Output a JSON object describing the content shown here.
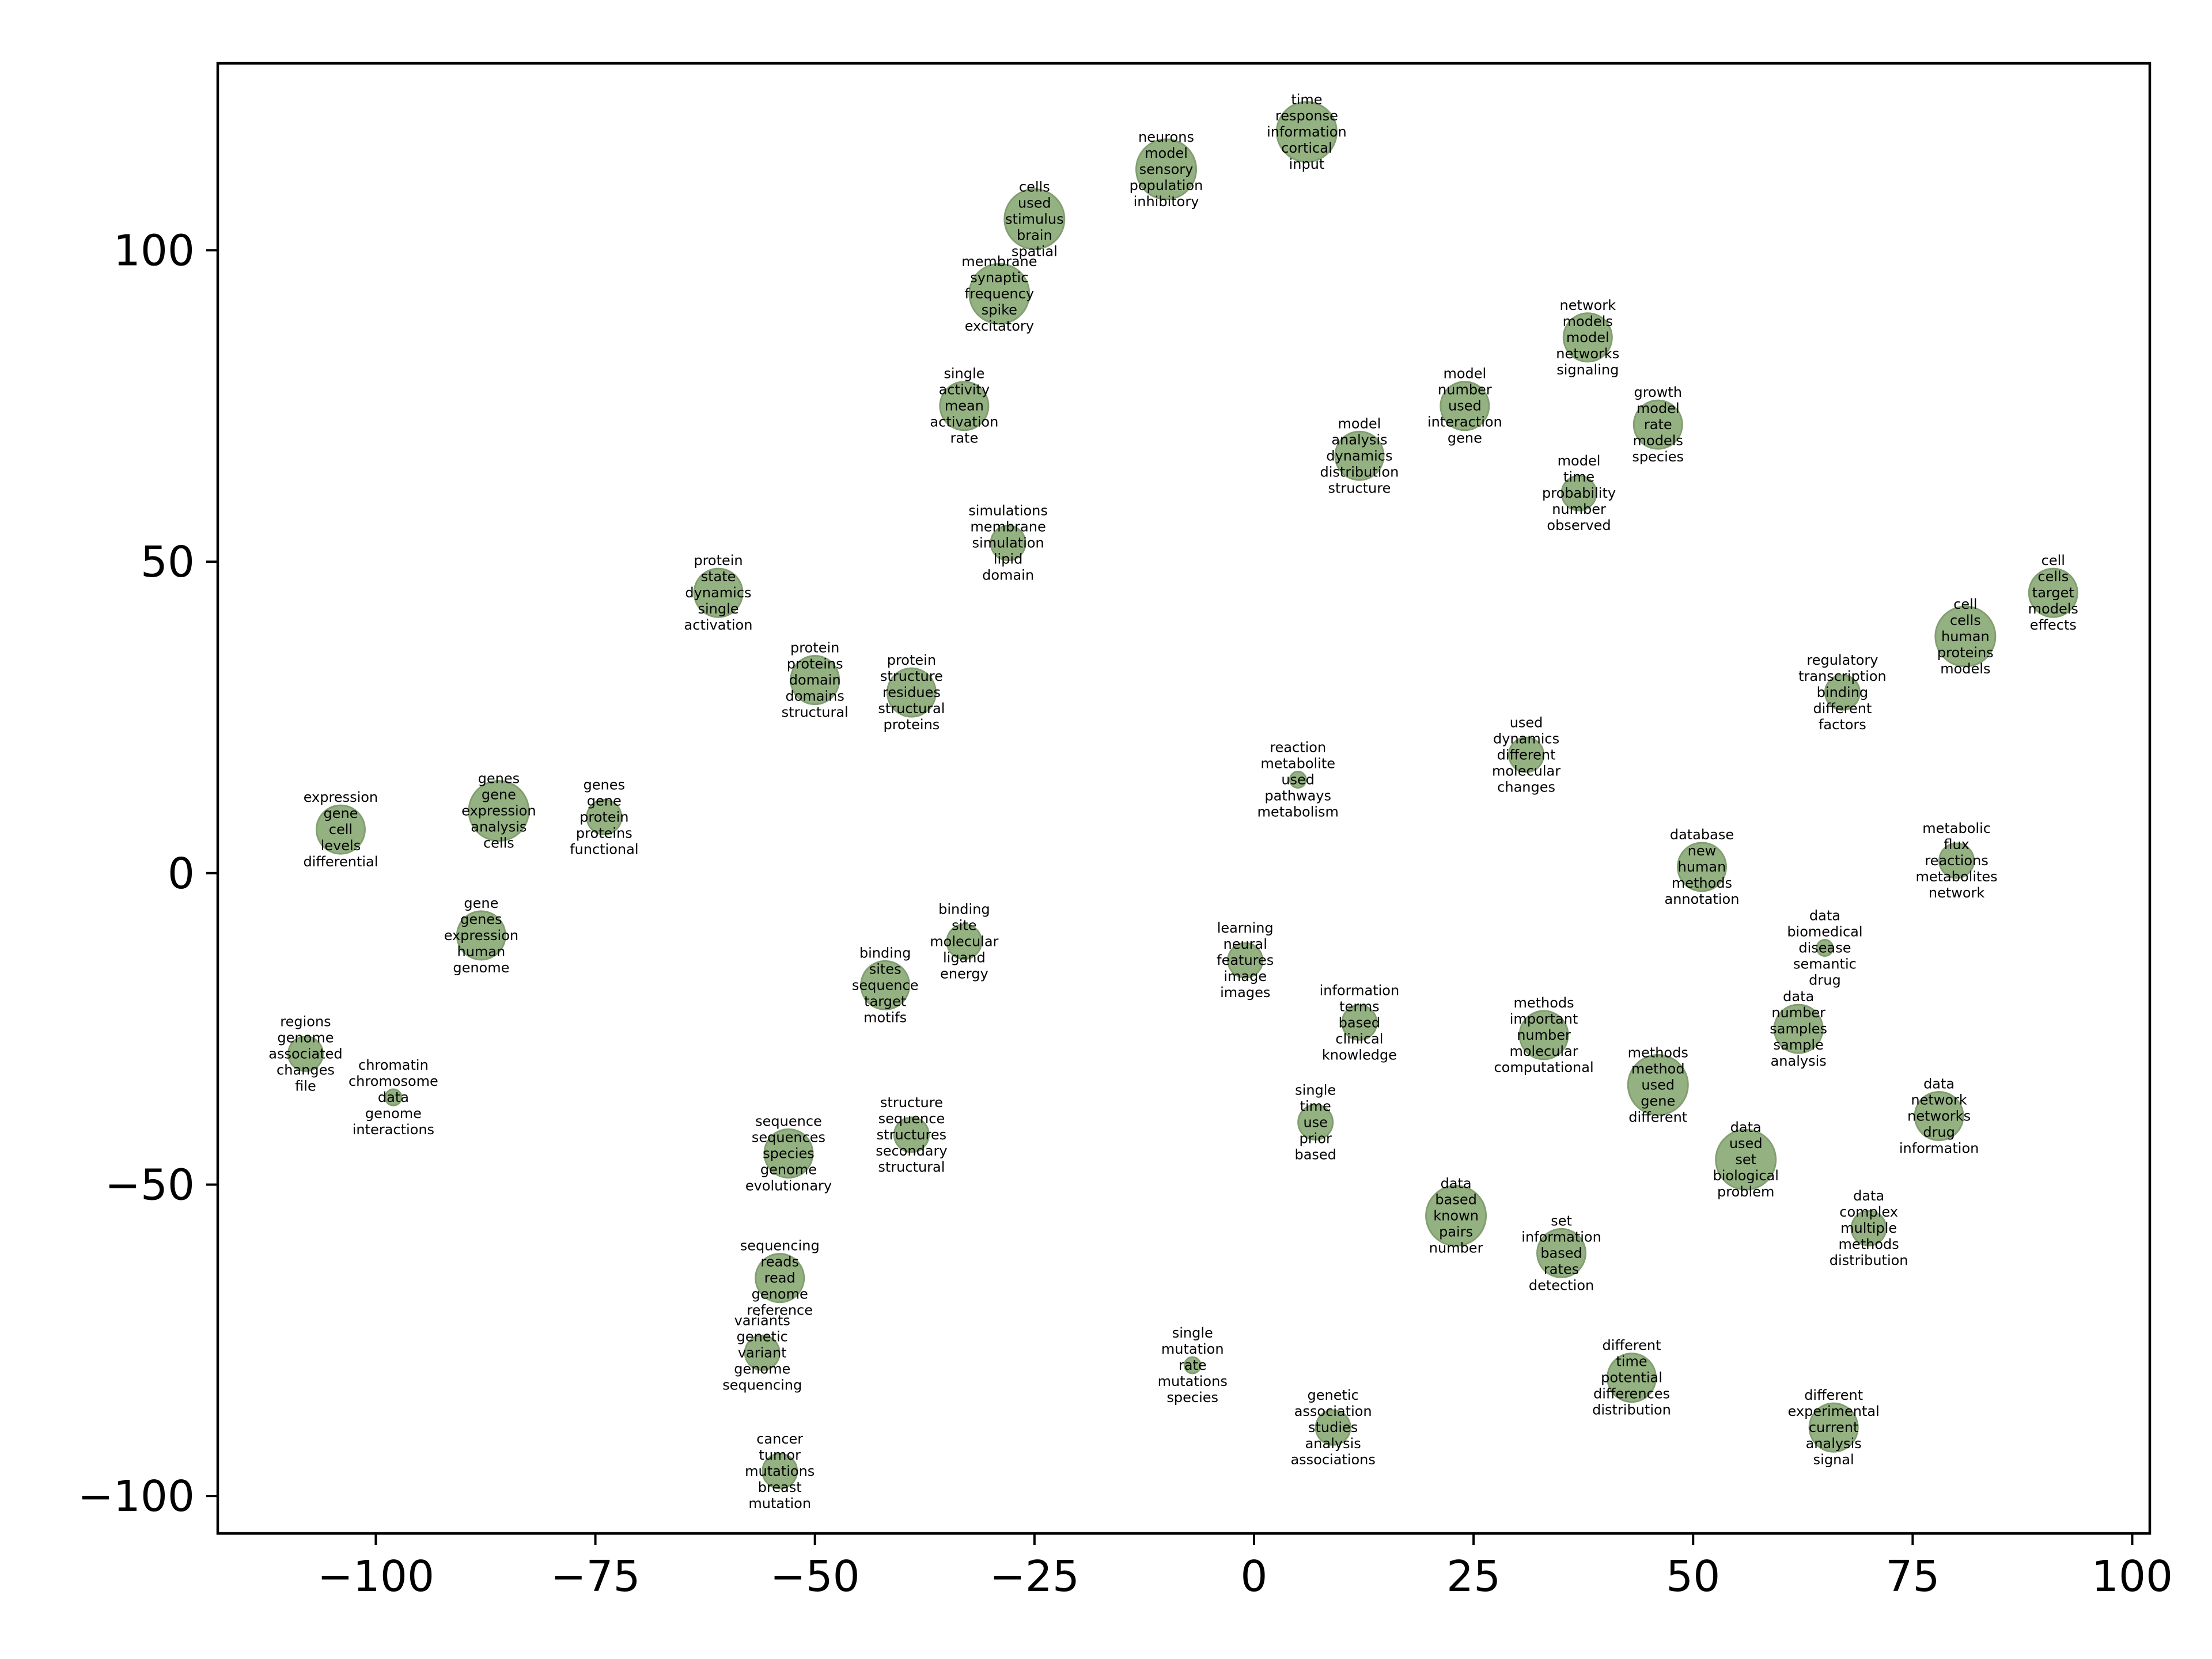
{
  "chart_data": {
    "type": "scatter",
    "title": "",
    "xlabel": "",
    "ylabel": "",
    "xlim": [
      -118,
      102
    ],
    "ylim": [
      -106,
      130
    ],
    "xticks": [
      -100,
      -75,
      -50,
      -25,
      0,
      25,
      50,
      75,
      100
    ],
    "yticks": [
      -100,
      -50,
      0,
      50,
      100
    ],
    "xtick_labels": [
      "−100",
      "−75",
      "−50",
      "−25",
      "0",
      "25",
      "50",
      "75",
      "100"
    ],
    "ytick_labels": [
      "−100",
      "−50",
      "0",
      "50",
      "100"
    ],
    "grid": false,
    "marker_color": "#8fad7c",
    "marker_edge": "#7c9a6a",
    "points": [
      {
        "x": 6,
        "y": 119,
        "size": 3,
        "words": [
          "time",
          "response",
          "information",
          "cortical",
          "input"
        ]
      },
      {
        "x": -10,
        "y": 113,
        "size": 3,
        "words": [
          "neurons",
          "model",
          "sensory",
          "population",
          "inhibitory"
        ]
      },
      {
        "x": -25,
        "y": 105,
        "size": 3,
        "words": [
          "cells",
          "used",
          "stimulus",
          "brain",
          "spatial"
        ]
      },
      {
        "x": -29,
        "y": 93,
        "size": 3,
        "words": [
          "membrane",
          "synaptic",
          "frequency",
          "spike",
          "excitatory"
        ]
      },
      {
        "x": 38,
        "y": 86,
        "size": 2,
        "words": [
          "network",
          "models",
          "model",
          "networks",
          "signaling"
        ]
      },
      {
        "x": -33,
        "y": 75,
        "size": 2,
        "words": [
          "single",
          "activity",
          "mean",
          "activation",
          "rate"
        ]
      },
      {
        "x": 24,
        "y": 75,
        "size": 2,
        "words": [
          "model",
          "number",
          "used",
          "interaction",
          "gene"
        ]
      },
      {
        "x": 46,
        "y": 72,
        "size": 2,
        "words": [
          "growth",
          "model",
          "rate",
          "models",
          "species"
        ]
      },
      {
        "x": 12,
        "y": 67,
        "size": 2,
        "words": [
          "model",
          "analysis",
          "dynamics",
          "distribution",
          "structure"
        ]
      },
      {
        "x": 37,
        "y": 61,
        "size": 1,
        "words": [
          "model",
          "time",
          "probability",
          "number",
          "observed"
        ]
      },
      {
        "x": -28,
        "y": 53,
        "size": 1,
        "words": [
          "simulations",
          "membrane",
          "simulation",
          "lipid",
          "domain"
        ]
      },
      {
        "x": -61,
        "y": 45,
        "size": 2,
        "words": [
          "protein",
          "state",
          "dynamics",
          "single",
          "activation"
        ]
      },
      {
        "x": 91,
        "y": 45,
        "size": 2,
        "words": [
          "cell",
          "cells",
          "target",
          "models",
          "effects"
        ]
      },
      {
        "x": 81,
        "y": 38,
        "size": 3,
        "words": [
          "cell",
          "cells",
          "human",
          "proteins",
          "models"
        ]
      },
      {
        "x": -50,
        "y": 31,
        "size": 2,
        "words": [
          "protein",
          "proteins",
          "domain",
          "domains",
          "structural"
        ]
      },
      {
        "x": -39,
        "y": 29,
        "size": 2,
        "words": [
          "protein",
          "structure",
          "residues",
          "structural",
          "proteins"
        ]
      },
      {
        "x": 67,
        "y": 29,
        "size": 1,
        "words": [
          "regulatory",
          "transcription",
          "binding",
          "different",
          "factors"
        ]
      },
      {
        "x": 31,
        "y": 19,
        "size": 1,
        "words": [
          "used",
          "dynamics",
          "different",
          "molecular",
          "changes"
        ]
      },
      {
        "x": 5,
        "y": 15,
        "size": 0,
        "words": [
          "reaction",
          "metabolite",
          "used",
          "pathways",
          "metabolism"
        ]
      },
      {
        "x": -86,
        "y": 10,
        "size": 3,
        "words": [
          "genes",
          "gene",
          "expression",
          "analysis",
          "cells"
        ]
      },
      {
        "x": -74,
        "y": 9,
        "size": 1,
        "words": [
          "genes",
          "gene",
          "protein",
          "proteins",
          "functional"
        ]
      },
      {
        "x": -104,
        "y": 7,
        "size": 2,
        "words": [
          "expression",
          "gene",
          "cell",
          "levels",
          "differential"
        ]
      },
      {
        "x": 80,
        "y": 2,
        "size": 1,
        "words": [
          "metabolic",
          "flux",
          "reactions",
          "metabolites",
          "network"
        ]
      },
      {
        "x": 51,
        "y": 1,
        "size": 2,
        "words": [
          "database",
          "new",
          "human",
          "methods",
          "annotation"
        ]
      },
      {
        "x": -88,
        "y": -10,
        "size": 2,
        "words": [
          "gene",
          "genes",
          "expression",
          "human",
          "genome"
        ]
      },
      {
        "x": -33,
        "y": -11,
        "size": 1,
        "words": [
          "binding",
          "site",
          "molecular",
          "ligand",
          "energy"
        ]
      },
      {
        "x": 65,
        "y": -12,
        "size": 0,
        "words": [
          "data",
          "biomedical",
          "disease",
          "semantic",
          "drug"
        ]
      },
      {
        "x": -1,
        "y": -14,
        "size": 1,
        "words": [
          "learning",
          "neural",
          "features",
          "image",
          "images"
        ]
      },
      {
        "x": -42,
        "y": -18,
        "size": 2,
        "words": [
          "binding",
          "sites",
          "sequence",
          "target",
          "motifs"
        ]
      },
      {
        "x": 12,
        "y": -24,
        "size": 1,
        "words": [
          "information",
          "terms",
          "based",
          "clinical",
          "knowledge"
        ]
      },
      {
        "x": 62,
        "y": -25,
        "size": 2,
        "words": [
          "data",
          "number",
          "samples",
          "sample",
          "analysis"
        ]
      },
      {
        "x": 33,
        "y": -26,
        "size": 2,
        "words": [
          "methods",
          "important",
          "number",
          "molecular",
          "computational"
        ]
      },
      {
        "x": -108,
        "y": -29,
        "size": 1,
        "words": [
          "regions",
          "genome",
          "associated",
          "changes",
          "file"
        ]
      },
      {
        "x": 46,
        "y": -34,
        "size": 3,
        "words": [
          "methods",
          "method",
          "used",
          "gene",
          "different"
        ]
      },
      {
        "x": -98,
        "y": -36,
        "size": 0,
        "words": [
          "chromatin",
          "chromosome",
          "data",
          "genome",
          "interactions"
        ]
      },
      {
        "x": 78,
        "y": -39,
        "size": 2,
        "words": [
          "data",
          "network",
          "networks",
          "drug",
          "information"
        ]
      },
      {
        "x": 7,
        "y": -40,
        "size": 1,
        "words": [
          "single",
          "time",
          "use",
          "prior",
          "based"
        ]
      },
      {
        "x": -39,
        "y": -42,
        "size": 1,
        "words": [
          "structure",
          "sequence",
          "structures",
          "secondary",
          "structural"
        ]
      },
      {
        "x": -53,
        "y": -45,
        "size": 2,
        "words": [
          "sequence",
          "sequences",
          "species",
          "genome",
          "evolutionary"
        ]
      },
      {
        "x": 56,
        "y": -46,
        "size": 3,
        "words": [
          "data",
          "used",
          "set",
          "biological",
          "problem"
        ]
      },
      {
        "x": 23,
        "y": -55,
        "size": 3,
        "words": [
          "data",
          "based",
          "known",
          "pairs",
          "number"
        ]
      },
      {
        "x": 70,
        "y": -57,
        "size": 1,
        "words": [
          "data",
          "complex",
          "multiple",
          "methods",
          "distribution"
        ]
      },
      {
        "x": 35,
        "y": -61,
        "size": 2,
        "words": [
          "set",
          "information",
          "based",
          "rates",
          "detection"
        ]
      },
      {
        "x": -54,
        "y": -65,
        "size": 2,
        "words": [
          "sequencing",
          "reads",
          "read",
          "genome",
          "reference"
        ]
      },
      {
        "x": -56,
        "y": -77,
        "size": 1,
        "words": [
          "variants",
          "genetic",
          "variant",
          "genome",
          "sequencing"
        ]
      },
      {
        "x": -7,
        "y": -79,
        "size": 0,
        "words": [
          "single",
          "mutation",
          "rate",
          "mutations",
          "species"
        ]
      },
      {
        "x": 43,
        "y": -81,
        "size": 2,
        "words": [
          "different",
          "time",
          "potential",
          "differences",
          "distribution"
        ]
      },
      {
        "x": 66,
        "y": -89,
        "size": 2,
        "words": [
          "different",
          "experimental",
          "current",
          "analysis",
          "signal"
        ]
      },
      {
        "x": 9,
        "y": -89,
        "size": 1,
        "words": [
          "genetic",
          "association",
          "studies",
          "analysis",
          "associations"
        ]
      },
      {
        "x": -54,
        "y": -96,
        "size": 1,
        "words": [
          "cancer",
          "tumor",
          "mutations",
          "breast",
          "mutation"
        ]
      }
    ]
  }
}
